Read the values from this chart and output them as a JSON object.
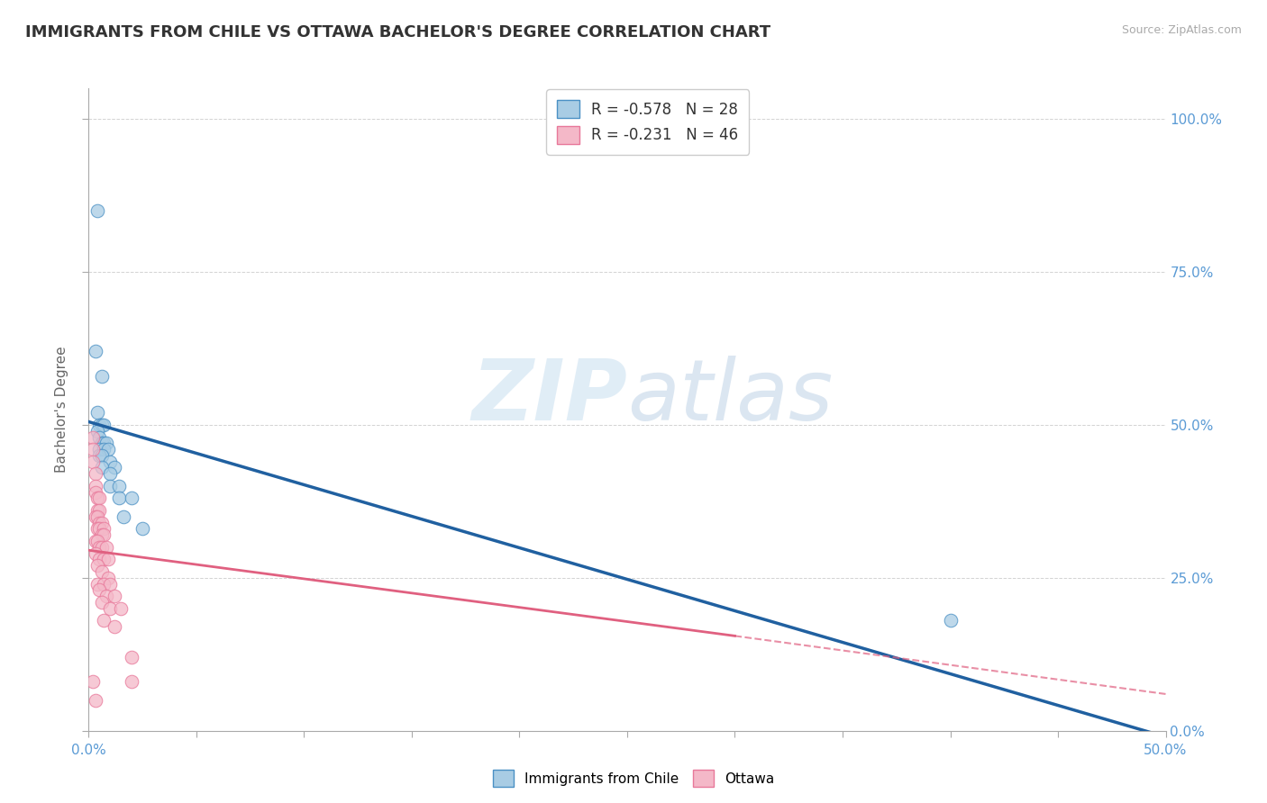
{
  "title": "IMMIGRANTS FROM CHILE VS OTTAWA BACHELOR'S DEGREE CORRELATION CHART",
  "source": "Source: ZipAtlas.com",
  "ylabel": "Bachelor's Degree",
  "legend_label_blue": "Immigrants from Chile",
  "legend_label_pink": "Ottawa",
  "watermark_zip": "ZIP",
  "watermark_atlas": "atlas",
  "blue_R": "-0.578",
  "blue_N": "28",
  "pink_R": "-0.231",
  "pink_N": "46",
  "blue_scatter": [
    [
      0.004,
      0.85
    ],
    [
      0.003,
      0.62
    ],
    [
      0.006,
      0.58
    ],
    [
      0.004,
      0.52
    ],
    [
      0.005,
      0.5
    ],
    [
      0.006,
      0.5
    ],
    [
      0.007,
      0.5
    ],
    [
      0.004,
      0.49
    ],
    [
      0.005,
      0.48
    ],
    [
      0.006,
      0.47
    ],
    [
      0.007,
      0.47
    ],
    [
      0.008,
      0.47
    ],
    [
      0.005,
      0.46
    ],
    [
      0.007,
      0.46
    ],
    [
      0.009,
      0.46
    ],
    [
      0.005,
      0.45
    ],
    [
      0.006,
      0.45
    ],
    [
      0.01,
      0.44
    ],
    [
      0.006,
      0.43
    ],
    [
      0.012,
      0.43
    ],
    [
      0.01,
      0.42
    ],
    [
      0.01,
      0.4
    ],
    [
      0.014,
      0.4
    ],
    [
      0.014,
      0.38
    ],
    [
      0.02,
      0.38
    ],
    [
      0.016,
      0.35
    ],
    [
      0.025,
      0.33
    ],
    [
      0.4,
      0.18
    ]
  ],
  "pink_scatter": [
    [
      0.002,
      0.48
    ],
    [
      0.002,
      0.46
    ],
    [
      0.002,
      0.44
    ],
    [
      0.003,
      0.42
    ],
    [
      0.003,
      0.4
    ],
    [
      0.003,
      0.39
    ],
    [
      0.004,
      0.38
    ],
    [
      0.004,
      0.36
    ],
    [
      0.005,
      0.38
    ],
    [
      0.005,
      0.36
    ],
    [
      0.003,
      0.35
    ],
    [
      0.004,
      0.35
    ],
    [
      0.005,
      0.34
    ],
    [
      0.006,
      0.34
    ],
    [
      0.004,
      0.33
    ],
    [
      0.005,
      0.33
    ],
    [
      0.007,
      0.33
    ],
    [
      0.006,
      0.32
    ],
    [
      0.007,
      0.32
    ],
    [
      0.003,
      0.31
    ],
    [
      0.004,
      0.31
    ],
    [
      0.005,
      0.3
    ],
    [
      0.006,
      0.3
    ],
    [
      0.008,
      0.3
    ],
    [
      0.003,
      0.29
    ],
    [
      0.005,
      0.28
    ],
    [
      0.007,
      0.28
    ],
    [
      0.009,
      0.28
    ],
    [
      0.004,
      0.27
    ],
    [
      0.006,
      0.26
    ],
    [
      0.009,
      0.25
    ],
    [
      0.004,
      0.24
    ],
    [
      0.007,
      0.24
    ],
    [
      0.01,
      0.24
    ],
    [
      0.005,
      0.23
    ],
    [
      0.008,
      0.22
    ],
    [
      0.012,
      0.22
    ],
    [
      0.006,
      0.21
    ],
    [
      0.01,
      0.2
    ],
    [
      0.015,
      0.2
    ],
    [
      0.007,
      0.18
    ],
    [
      0.012,
      0.17
    ],
    [
      0.002,
      0.08
    ],
    [
      0.02,
      0.12
    ],
    [
      0.02,
      0.08
    ],
    [
      0.003,
      0.05
    ]
  ],
  "blue_line_x": [
    0.0,
    0.5
  ],
  "blue_line_y": [
    0.505,
    -0.01
  ],
  "pink_line_x": [
    0.0,
    0.3
  ],
  "pink_line_y": [
    0.295,
    0.155
  ],
  "pink_ext_line_x": [
    0.3,
    0.5
  ],
  "pink_ext_line_y": [
    0.155,
    0.06
  ],
  "xlim": [
    0.0,
    0.5
  ],
  "ylim": [
    0.0,
    1.05
  ],
  "yticks": [
    0.0,
    0.25,
    0.5,
    0.75,
    1.0
  ],
  "yticklabels": [
    "0.0%",
    "25.0%",
    "50.0%",
    "75.0%",
    "100.0%"
  ],
  "background_color": "#ffffff",
  "blue_dot_color": "#a8cce4",
  "pink_dot_color": "#f4b8c8",
  "blue_edge_color": "#4a90c4",
  "pink_edge_color": "#e8789a",
  "blue_line_color": "#2060a0",
  "pink_line_color": "#e06080",
  "grid_color": "#c8c8c8",
  "title_color": "#333333",
  "source_color": "#aaaaaa",
  "tick_label_color": "#5b9bd5"
}
